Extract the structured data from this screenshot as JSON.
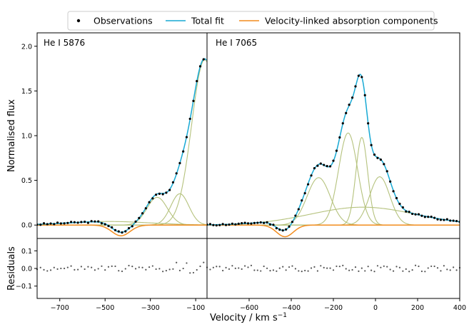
{
  "chart_data": {
    "type": "line",
    "xlabel": "Velocity / km s",
    "xlabel_superscript": "−1",
    "ylabel_top": "Normalised flux",
    "ylabel_bottom": "Residuals",
    "legend": [
      {
        "label": "Observations",
        "style": "marker",
        "color": "#000000"
      },
      {
        "label": "Total fit",
        "style": "line",
        "color": "#17a9d4"
      },
      {
        "label": "Velocity-linked absorption components",
        "style": "line",
        "color": "#f28c1e"
      }
    ],
    "colors": {
      "component": "#b5c27d",
      "observation": "#000000",
      "fit": "#17a9d4",
      "absorption": "#f28c1e",
      "residual": "#555555"
    },
    "flux_ylim": [
      -0.15,
      2.15
    ],
    "flux_yticks": [
      {
        "v": 0.0,
        "label": "0.0"
      },
      {
        "v": 0.5,
        "label": "0.5"
      },
      {
        "v": 1.0,
        "label": "1.0"
      },
      {
        "v": 1.5,
        "label": "1.5"
      },
      {
        "v": 2.0,
        "label": "2.0"
      }
    ],
    "resid_ylim": [
      -0.17,
      0.17
    ],
    "resid_yticks": [
      {
        "v": 0.1,
        "label": "0.1"
      },
      {
        "v": 0.0,
        "label": "0.0"
      },
      {
        "v": -0.1,
        "label": "−0.1"
      }
    ],
    "panels": [
      {
        "label": "He I 5876",
        "xlim": [
          -800,
          -50
        ],
        "xticks": [
          {
            "v": -700,
            "label": "−700"
          },
          {
            "v": -500,
            "label": "−500"
          },
          {
            "v": -300,
            "label": "−300"
          },
          {
            "v": -100,
            "label": "−100"
          }
        ],
        "emission_components": [
          {
            "center": -270,
            "amp": 0.31,
            "sigma": 45
          },
          {
            "center": -170,
            "amp": 0.35,
            "sigma": 40
          },
          {
            "center": -60,
            "amp": 1.85,
            "sigma": 58
          },
          {
            "center": -480,
            "amp": 0.04,
            "sigma": 180
          }
        ],
        "absorption": {
          "center": -430,
          "depth": 0.12,
          "sigma": 40
        },
        "x_start": -800,
        "x_end": -52,
        "obs_step": 15,
        "residual_seed": 3
      },
      {
        "label": "He I 7065",
        "xlim": [
          -800,
          400
        ],
        "xticks": [
          {
            "v": -600,
            "label": "−600"
          },
          {
            "v": -400,
            "label": "−400"
          },
          {
            "v": -200,
            "label": "−200"
          },
          {
            "v": 0,
            "label": "0"
          },
          {
            "v": 200,
            "label": "200"
          },
          {
            "v": 400,
            "label": "400"
          }
        ],
        "emission_components": [
          {
            "center": -270,
            "amp": 0.53,
            "sigma": 55
          },
          {
            "center": -130,
            "amp": 1.03,
            "sigma": 45
          },
          {
            "center": -65,
            "amp": 0.98,
            "sigma": 28
          },
          {
            "center": 20,
            "amp": 0.54,
            "sigma": 48
          },
          {
            "center": -60,
            "amp": 0.2,
            "sigma": 250
          }
        ],
        "absorption": {
          "center": -430,
          "depth": 0.13,
          "sigma": 40
        },
        "x_start": -800,
        "x_end": 400,
        "obs_step": 15,
        "residual_seed": 11
      }
    ]
  }
}
